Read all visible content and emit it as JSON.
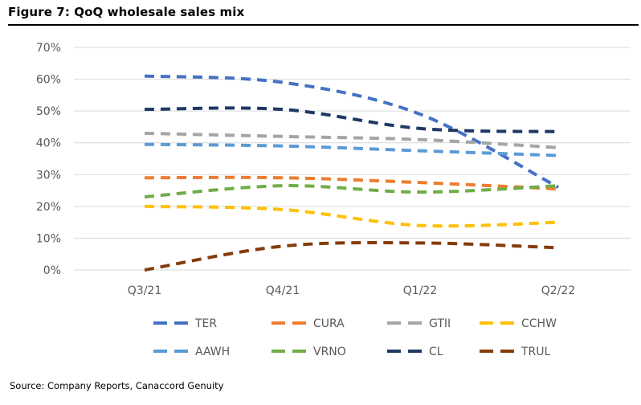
{
  "figure": {
    "title": "Figure 7: QoQ wholesale sales mix",
    "source": "Source: Company Reports, Canaccord Genuity"
  },
  "chart_data": {
    "type": "line",
    "title": "",
    "xlabel": "",
    "ylabel": "",
    "categories": [
      "Q3/21",
      "Q4/21",
      "Q1/22",
      "Q2/22"
    ],
    "y_ticks": [
      "0%",
      "10%",
      "20%",
      "30%",
      "40%",
      "50%",
      "60%",
      "70%"
    ],
    "ylim": [
      0,
      70
    ],
    "grid": true,
    "legend_position": "bottom",
    "line_style": "dashed",
    "series": [
      {
        "name": "TER",
        "color": "#4472C4",
        "values": [
          61,
          59,
          49,
          26
        ]
      },
      {
        "name": "CURA",
        "color": "#ED7D31",
        "values": [
          29,
          29,
          27.5,
          25.5
        ]
      },
      {
        "name": "GTII",
        "color": "#A5A5A5",
        "values": [
          43,
          42,
          41,
          38.5
        ]
      },
      {
        "name": "CCHW",
        "color": "#FFC000",
        "values": [
          20,
          19,
          14,
          15
        ]
      },
      {
        "name": "AAWH",
        "color": "#5B9BD5",
        "values": [
          39.5,
          39,
          37.5,
          36
        ]
      },
      {
        "name": "VRNO",
        "color": "#70AD47",
        "values": [
          23,
          26.5,
          24.5,
          26.5
        ]
      },
      {
        "name": "CL",
        "color": "#203864",
        "values": [
          50.5,
          50.5,
          44.5,
          43.5
        ]
      },
      {
        "name": "TRUL",
        "color": "#843C0C",
        "values": [
          0,
          7.5,
          8.5,
          7
        ]
      }
    ]
  }
}
